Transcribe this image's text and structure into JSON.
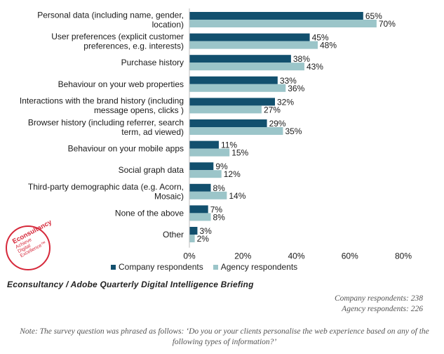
{
  "chart_data": {
    "type": "bar",
    "orientation": "horizontal",
    "categories": [
      [
        "Personal data (including name, gender,",
        "location)"
      ],
      [
        "User preferences (explicit customer",
        "preferences, e.g. interests)"
      ],
      [
        "Purchase history"
      ],
      [
        "Behaviour on your web properties"
      ],
      [
        "Interactions with the brand history (including",
        "message opens, clicks )"
      ],
      [
        "Browser history (including referrer, search",
        "term, ad viewed)"
      ],
      [
        "Behaviour on your mobile apps"
      ],
      [
        "Social graph data"
      ],
      [
        "Third-party demographic data (e.g. Acorn,",
        "Mosaic)"
      ],
      [
        "None of the above"
      ],
      [
        "Other"
      ]
    ],
    "series": [
      {
        "name": "Company respondents",
        "color": "#12506e",
        "values": [
          65,
          45,
          38,
          33,
          32,
          29,
          11,
          9,
          8,
          7,
          3
        ]
      },
      {
        "name": "Agency respondents",
        "color": "#9bc5c9",
        "values": [
          70,
          48,
          43,
          36,
          27,
          35,
          15,
          12,
          14,
          8,
          2
        ]
      }
    ],
    "value_suffix": "%",
    "xlim": [
      0,
      80
    ],
    "xticks": [
      0,
      20,
      40,
      60,
      80
    ],
    "xtick_labels": [
      "0%",
      "20%",
      "40%",
      "60%",
      "80%"
    ],
    "legend_position": "bottom",
    "grid": false
  },
  "source": "Econsultancy  / Adobe Quarterly  Digital Intelligence  Briefing",
  "respondents": {
    "company": "Company respondents: 238",
    "agency": "Agency respondents: 226"
  },
  "note": "Note: The survey question was phrased as follows: ‘Do you or your clients personalise the web experience based on any of the following types of information?’",
  "logo": {
    "line1": "Econsultancy",
    "line2": "Achieve",
    "line3": "Digital",
    "line4": "Excellence™",
    "color": "#d6283a"
  }
}
